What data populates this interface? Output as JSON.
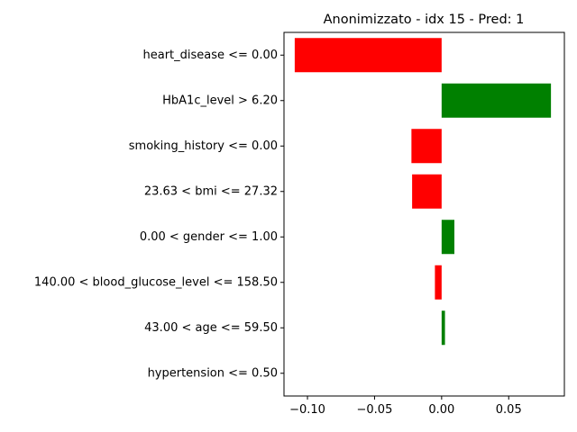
{
  "chart_data": {
    "type": "bar",
    "orientation": "horizontal",
    "title": "Anonimizzato - idx 15 - Pred: 1",
    "xlabel": "",
    "ylabel": "",
    "xlim": [
      -0.1175,
      0.0915
    ],
    "xticks": [
      -0.1,
      -0.05,
      0.0,
      0.05
    ],
    "xtick_labels": [
      "−0.10",
      "−0.05",
      "0.00",
      "0.05"
    ],
    "grid": false,
    "legend": "none",
    "categories": [
      "heart_disease <= 0.00",
      "HbA1c_level > 6.20",
      "smoking_history <= 0.00",
      "23.63 < bmi <= 27.32",
      "0.00 < gender <= 1.00",
      "140.00 < blood_glucose_level <= 158.50",
      "43.00 < age <= 59.50",
      "hypertension <= 0.50"
    ],
    "values": [
      -0.1095,
      0.0815,
      -0.0225,
      -0.022,
      0.0095,
      -0.005,
      0.0025,
      0.0
    ],
    "colors": {
      "positive": "#008000",
      "negative": "#ff0000"
    }
  }
}
